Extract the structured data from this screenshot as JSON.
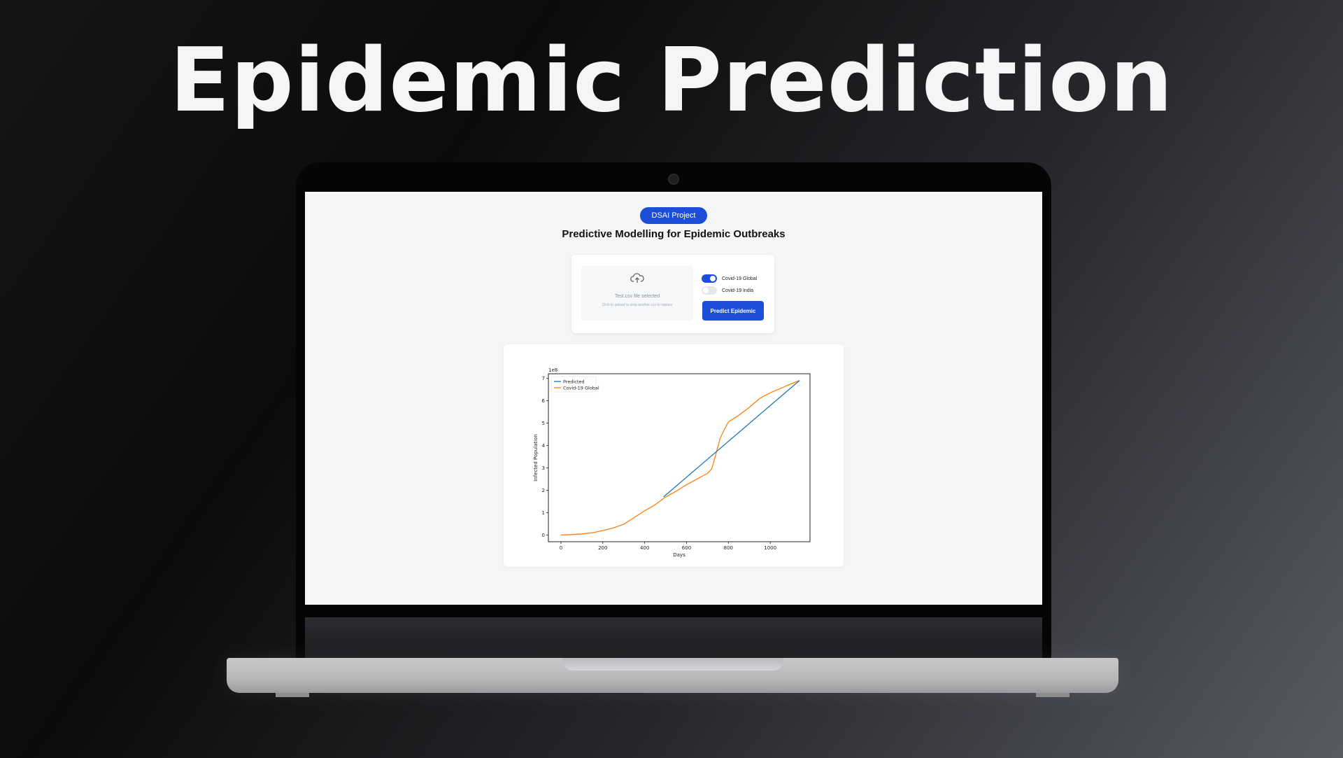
{
  "headline": "Epidemic Prediction",
  "app": {
    "badge": "DSAI Project",
    "title": "Predictive Modelling for Epidemic Outbreaks",
    "upload": {
      "status": "Test.csv file selected",
      "hint": "Click to upload or drop another csv to replace"
    },
    "toggles": [
      {
        "label": "Covid-19 Global",
        "on": true
      },
      {
        "label": "Covid-19 India",
        "on": false
      }
    ],
    "predict_button": "Predict Epidemic"
  },
  "colors": {
    "accent": "#1d4ed8",
    "predicted": "#1f77b4",
    "actual": "#ff7f0e"
  },
  "chart_data": {
    "type": "line",
    "xlabel": "Days",
    "ylabel": "Infected Population",
    "scale_label": "1e8",
    "xlim": [
      -60,
      1190
    ],
    "ylim": [
      -0.3,
      7.2
    ],
    "xticks": [
      0,
      200,
      400,
      600,
      800,
      1000
    ],
    "yticks": [
      0,
      1,
      2,
      3,
      4,
      5,
      6,
      7
    ],
    "legend_position": "top-left",
    "series": [
      {
        "name": "Predicted",
        "x": [
          490,
          1140
        ],
        "y": [
          1.7,
          6.9
        ]
      },
      {
        "name": "Covid-19 Global",
        "x": [
          0,
          50,
          100,
          150,
          200,
          250,
          300,
          350,
          400,
          450,
          500,
          550,
          600,
          650,
          700,
          720,
          740,
          760,
          780,
          800,
          850,
          900,
          950,
          1000,
          1050,
          1100,
          1140
        ],
        "y": [
          0.0,
          0.02,
          0.05,
          0.1,
          0.2,
          0.32,
          0.48,
          0.78,
          1.08,
          1.35,
          1.7,
          1.95,
          2.25,
          2.5,
          2.75,
          2.95,
          3.6,
          4.3,
          4.7,
          5.05,
          5.35,
          5.7,
          6.1,
          6.35,
          6.55,
          6.75,
          6.9
        ]
      }
    ]
  }
}
